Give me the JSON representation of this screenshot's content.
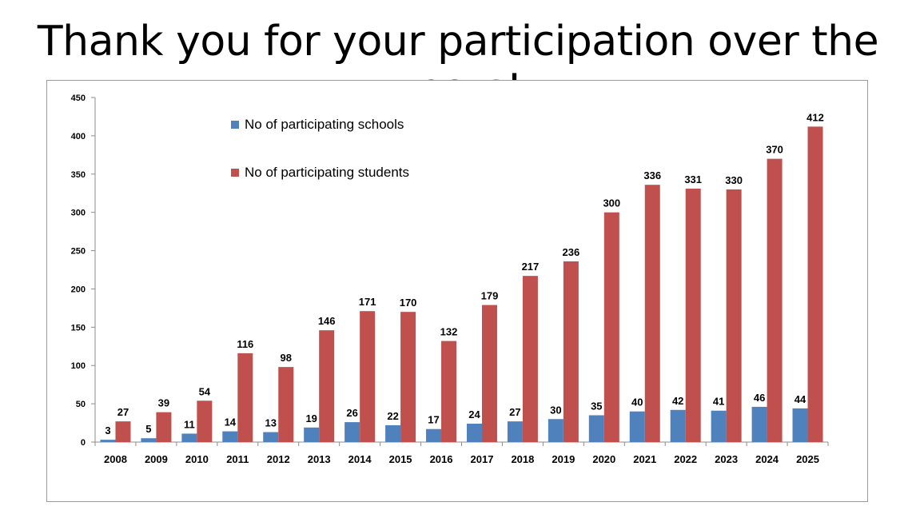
{
  "slide": {
    "title": "Thank you for your participation over the years!"
  },
  "chart_data": {
    "type": "bar",
    "categories": [
      "2008",
      "2009",
      "2010",
      "2011",
      "2012",
      "2013",
      "2014",
      "2015",
      "2016",
      "2017",
      "2018",
      "2019",
      "2020",
      "2021",
      "2022",
      "2023",
      "2024",
      "2025"
    ],
    "series": [
      {
        "name": "No of participating schools",
        "color": "#4f81bd",
        "values": [
          3,
          5,
          11,
          14,
          13,
          19,
          26,
          22,
          17,
          24,
          27,
          30,
          35,
          40,
          42,
          41,
          46,
          44
        ]
      },
      {
        "name": "No of participating students",
        "color": "#c0504d",
        "values": [
          27,
          39,
          54,
          116,
          98,
          146,
          171,
          170,
          132,
          179,
          217,
          236,
          300,
          336,
          331,
          330,
          370,
          412
        ]
      }
    ],
    "ylim": [
      0,
      450
    ],
    "yticks": [
      0,
      50,
      100,
      150,
      200,
      250,
      300,
      350,
      400,
      450
    ],
    "legend_position": "top-center",
    "grid": false,
    "data_labels": true
  }
}
